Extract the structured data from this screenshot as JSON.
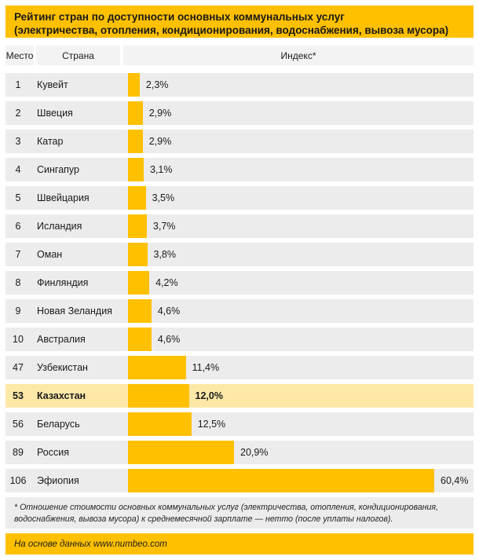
{
  "colors": {
    "amber": "#FFC000",
    "row_bg": "#ECECEC",
    "header_bg": "#F3F3F3",
    "highlight_bg": "#FDE8A8",
    "text": "#1A1A1A"
  },
  "title": {
    "line1": "Рейтинг стран по доступности основных коммунальных услуг",
    "line2": "(электричества, отопления, кондиционирования, водоснабжения, вывоза мусора)"
  },
  "table": {
    "columns": {
      "rank": "Место",
      "country": "Страна",
      "index": "Индекс*"
    },
    "rows": [
      {
        "rank": "1",
        "country": "Кувейт",
        "value": 2.3,
        "label": "2,3%",
        "highlighted": false
      },
      {
        "rank": "2",
        "country": "Швеция",
        "value": 2.9,
        "label": "2,9%",
        "highlighted": false
      },
      {
        "rank": "3",
        "country": "Катар",
        "value": 2.9,
        "label": "2,9%",
        "highlighted": false
      },
      {
        "rank": "4",
        "country": "Сингапур",
        "value": 3.1,
        "label": "3,1%",
        "highlighted": false
      },
      {
        "rank": "5",
        "country": "Швейцария",
        "value": 3.5,
        "label": "3,5%",
        "highlighted": false
      },
      {
        "rank": "6",
        "country": "Исландия",
        "value": 3.7,
        "label": "3,7%",
        "highlighted": false
      },
      {
        "rank": "7",
        "country": "Оман",
        "value": 3.8,
        "label": "3,8%",
        "highlighted": false
      },
      {
        "rank": "8",
        "country": "Финляндия",
        "value": 4.2,
        "label": "4,2%",
        "highlighted": false
      },
      {
        "rank": "9",
        "country": "Новая Зеландия",
        "value": 4.6,
        "label": "4,6%",
        "highlighted": false
      },
      {
        "rank": "10",
        "country": "Австралия",
        "value": 4.6,
        "label": "4,6%",
        "highlighted": false
      },
      {
        "rank": "47",
        "country": "Узбекистан",
        "value": 11.4,
        "label": "11,4%",
        "highlighted": false
      },
      {
        "rank": "53",
        "country": "Казахстан",
        "value": 12.0,
        "label": "12,0%",
        "highlighted": true
      },
      {
        "rank": "56",
        "country": "Беларусь",
        "value": 12.5,
        "label": "12,5%",
        "highlighted": false
      },
      {
        "rank": "89",
        "country": "Россия",
        "value": 20.9,
        "label": "20,9%",
        "highlighted": false
      },
      {
        "rank": "106",
        "country": "Эфиопия",
        "value": 60.4,
        "label": "60,4%",
        "highlighted": false
      }
    ]
  },
  "footnote": "* Отношение стоимости основных коммунальных услуг (электричества, отопления, кондиционирования, водоснабжения, вывоза мусора) к среднемесячной зарплате — нетто (после уплаты налогов).",
  "source": "На основе данных  www.numbeo.com",
  "chart_data": {
    "type": "bar",
    "orientation": "horizontal",
    "title": "Рейтинг стран по доступности основных коммунальных услуг (электричества, отопления, кондиционирования, водоснабжения, вывоза мусора)",
    "categories": [
      "Кувейт",
      "Швеция",
      "Катар",
      "Сингапур",
      "Швейцария",
      "Исландия",
      "Оман",
      "Финляндия",
      "Новая Зеландия",
      "Австралия",
      "Узбекистан",
      "Казахстан",
      "Беларусь",
      "Россия",
      "Эфиопия"
    ],
    "ranks": [
      1,
      2,
      3,
      4,
      5,
      6,
      7,
      8,
      9,
      10,
      47,
      53,
      56,
      89,
      106
    ],
    "values": [
      2.3,
      2.9,
      2.9,
      3.1,
      3.5,
      3.7,
      3.8,
      4.2,
      4.6,
      4.6,
      11.4,
      12.0,
      12.5,
      20.9,
      60.4
    ],
    "value_labels": [
      "2,3%",
      "2,9%",
      "2,9%",
      "3,1%",
      "3,5%",
      "3,7%",
      "3,8%",
      "4,2%",
      "4,6%",
      "4,6%",
      "11,4%",
      "12,0%",
      "12,5%",
      "20,9%",
      "60,4%"
    ],
    "highlighted_category": "Казахстан",
    "xlabel": "Индекс*",
    "ylabel": "Страна",
    "xlim": [
      0,
      60.4
    ],
    "grid": false,
    "legend": false,
    "data_labels": true,
    "source": "www.numbeo.com"
  }
}
